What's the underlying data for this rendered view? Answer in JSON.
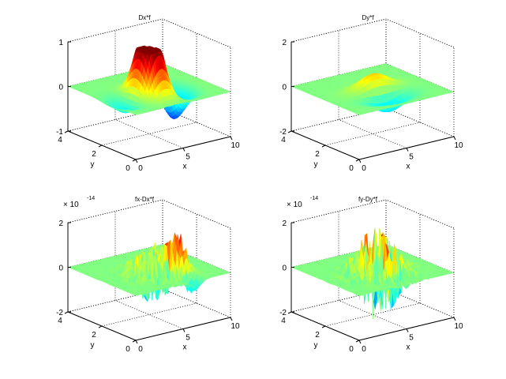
{
  "figure": {
    "background": "#ffffff"
  },
  "chart_data": [
    {
      "type": "surface",
      "title": "Dx*f",
      "xlabel": "x",
      "ylabel": "y",
      "xlim": [
        0,
        10
      ],
      "ylim": [
        0,
        4
      ],
      "zlim": [
        -1,
        1
      ],
      "xticks": [
        "0",
        "5",
        "10"
      ],
      "yticks": [
        "0",
        "2",
        "4"
      ],
      "zticks": [
        "-1",
        "0",
        "1"
      ],
      "z_exponent": "",
      "grid": true,
      "colormap": "jet"
    },
    {
      "type": "surface",
      "title": "Dy*f",
      "xlabel": "x",
      "ylabel": "y",
      "xlim": [
        0,
        10
      ],
      "ylim": [
        0,
        4
      ],
      "zlim": [
        -2,
        2
      ],
      "xticks": [
        "0",
        "5",
        "10"
      ],
      "yticks": [
        "0",
        "2",
        "4"
      ],
      "zticks": [
        "-2",
        "0",
        "2"
      ],
      "z_exponent": "",
      "grid": true,
      "colormap": "jet"
    },
    {
      "type": "surface",
      "title": "fx-Dx*f",
      "xlabel": "x",
      "ylabel": "y",
      "xlim": [
        0,
        10
      ],
      "ylim": [
        0,
        4
      ],
      "zlim": [
        -2,
        2
      ],
      "xticks": [
        "0",
        "5",
        "10"
      ],
      "yticks": [
        "0",
        "2",
        "4"
      ],
      "zticks": [
        "-2",
        "0",
        "2"
      ],
      "z_exponent": "-14",
      "grid": true,
      "colormap": "jet"
    },
    {
      "type": "surface",
      "title": "fy-Dy*f",
      "xlabel": "x",
      "ylabel": "y",
      "xlim": [
        0,
        10
      ],
      "ylim": [
        0,
        4
      ],
      "zlim": [
        -2,
        2
      ],
      "xticks": [
        "0",
        "5",
        "10"
      ],
      "yticks": [
        "0",
        "2",
        "4"
      ],
      "zticks": [
        "-2",
        "0",
        "2"
      ],
      "z_exponent": "-14",
      "grid": true,
      "colormap": "jet"
    }
  ]
}
